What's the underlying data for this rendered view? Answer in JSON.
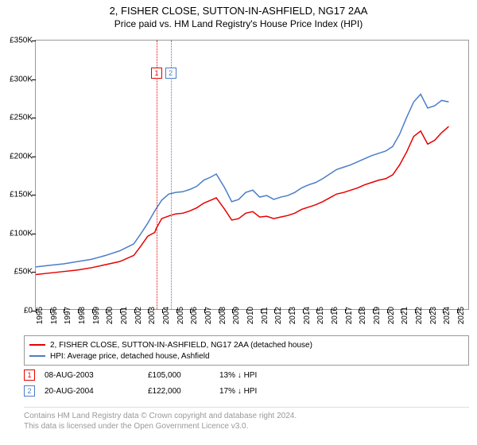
{
  "title": "2, FISHER CLOSE, SUTTON-IN-ASHFIELD, NG17 2AA",
  "subtitle": "Price paid vs. HM Land Registry's House Price Index (HPI)",
  "chart": {
    "type": "line",
    "background_color": "#ffffff",
    "border_color": "#999999",
    "x": {
      "min": 1995,
      "max": 2025.9,
      "ticks": [
        1995,
        1996,
        1997,
        1998,
        1999,
        2000,
        2001,
        2002,
        2003,
        2004,
        2005,
        2006,
        2007,
        2008,
        2009,
        2010,
        2011,
        2012,
        2013,
        2014,
        2015,
        2016,
        2017,
        2018,
        2019,
        2020,
        2021,
        2022,
        2023,
        2024,
        2025
      ],
      "label_fontsize": 10
    },
    "y": {
      "min": 0,
      "max": 350000,
      "ticks": [
        0,
        50000,
        100000,
        150000,
        200000,
        250000,
        300000,
        350000
      ],
      "tick_labels": [
        "£0",
        "£50K",
        "£100K",
        "£150K",
        "£200K",
        "£250K",
        "£300K",
        "£350K"
      ],
      "label_fontsize": 10
    },
    "series": [
      {
        "name": "2, FISHER CLOSE, SUTTON-IN-ASHFIELD, NG17 2AA (detached house)",
        "color": "#e60000",
        "line_width": 1.5,
        "x": [
          1995,
          1996,
          1997,
          1998,
          1999,
          2000,
          2001,
          2002,
          2002.5,
          2003,
          2003.5,
          2003.6,
          2004,
          2004.6,
          2005,
          2005.5,
          2006,
          2006.5,
          2007,
          2007.5,
          2007.9,
          2008.5,
          2009,
          2009.5,
          2010,
          2010.5,
          2011,
          2011.5,
          2012,
          2012.5,
          2013,
          2013.5,
          2014,
          2014.5,
          2015,
          2015.5,
          2016,
          2016.5,
          2017,
          2017.5,
          2018,
          2018.5,
          2019,
          2019.5,
          2020,
          2020.5,
          2021,
          2021.5,
          2022,
          2022.5,
          2023,
          2023.5,
          2024,
          2024.5
        ],
        "y": [
          45000,
          47000,
          49000,
          51000,
          54000,
          58000,
          62000,
          70000,
          82000,
          95000,
          100000,
          105000,
          118000,
          122000,
          124000,
          125000,
          128000,
          132000,
          138000,
          142000,
          145000,
          130000,
          116000,
          118000,
          125000,
          127000,
          120000,
          121000,
          118000,
          120000,
          122000,
          125000,
          130000,
          133000,
          136000,
          140000,
          145000,
          150000,
          152000,
          155000,
          158000,
          162000,
          165000,
          168000,
          170000,
          175000,
          188000,
          205000,
          225000,
          232000,
          215000,
          220000,
          230000,
          238000
        ]
      },
      {
        "name": "HPI: Average price, detached house, Ashfield",
        "color": "#4a7ec8",
        "line_width": 1.5,
        "x": [
          1995,
          1996,
          1997,
          1998,
          1999,
          2000,
          2001,
          2002,
          2002.5,
          2003,
          2003.5,
          2004,
          2004.5,
          2005,
          2005.5,
          2006,
          2006.5,
          2007,
          2007.5,
          2007.9,
          2008.5,
          2009,
          2009.5,
          2010,
          2010.5,
          2011,
          2011.5,
          2012,
          2012.5,
          2013,
          2013.5,
          2014,
          2014.5,
          2015,
          2015.5,
          2016,
          2016.5,
          2017,
          2017.5,
          2018,
          2018.5,
          2019,
          2019.5,
          2020,
          2020.5,
          2021,
          2021.5,
          2022,
          2022.5,
          2023,
          2023.5,
          2024,
          2024.5
        ],
        "y": [
          55000,
          57000,
          59000,
          62000,
          65000,
          70000,
          76000,
          85000,
          98000,
          112000,
          128000,
          142000,
          150000,
          152000,
          153000,
          156000,
          160000,
          168000,
          172000,
          176000,
          158000,
          140000,
          143000,
          152000,
          155000,
          146000,
          148000,
          143000,
          146000,
          148000,
          152000,
          158000,
          162000,
          165000,
          170000,
          176000,
          182000,
          185000,
          188000,
          192000,
          196000,
          200000,
          203000,
          206000,
          212000,
          228000,
          250000,
          270000,
          280000,
          262000,
          265000,
          272000,
          270000
        ]
      }
    ],
    "markers": [
      {
        "label": "1",
        "x": 2003.6,
        "marker_top_y": 315000,
        "color": "#e60000"
      },
      {
        "label": "2",
        "x": 2004.6,
        "marker_top_y": 315000,
        "color": "#4a7ec8"
      }
    ]
  },
  "legend": {
    "border_color": "#999999",
    "items": [
      {
        "color": "#e60000",
        "label": "2, FISHER CLOSE, SUTTON-IN-ASHFIELD, NG17 2AA (detached house)"
      },
      {
        "color": "#4a7ec8",
        "label": "HPI: Average price, detached house, Ashfield"
      }
    ]
  },
  "sales": [
    {
      "marker_label": "1",
      "marker_color": "#e60000",
      "date": "08-AUG-2003",
      "price": "£105,000",
      "pct": "13% ↓ HPI"
    },
    {
      "marker_label": "2",
      "marker_color": "#4a7ec8",
      "date": "20-AUG-2004",
      "price": "£122,000",
      "pct": "17% ↓ HPI"
    }
  ],
  "footer": {
    "line1": "Contains HM Land Registry data © Crown copyright and database right 2024.",
    "line2": "This data is licensed under the Open Government Licence v3.0.",
    "color": "#999999"
  }
}
